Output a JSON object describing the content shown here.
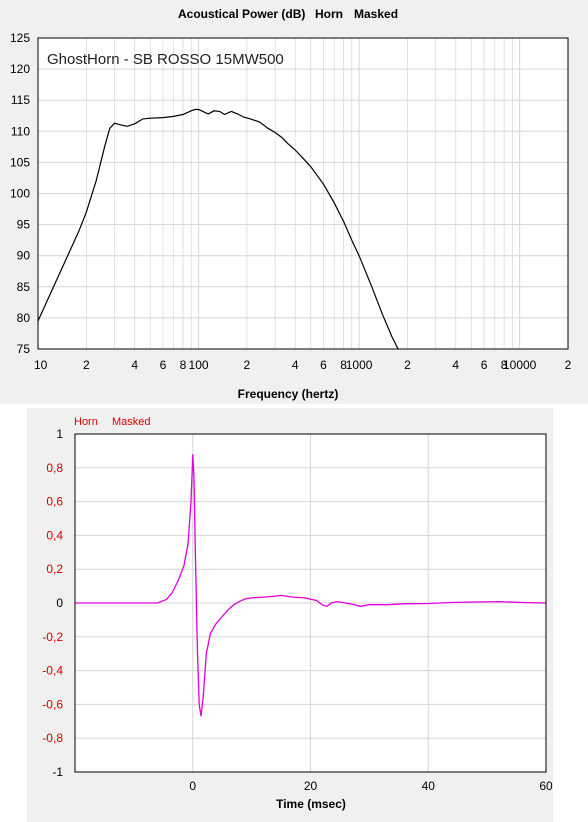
{
  "chart_data": [
    {
      "type": "line",
      "title": "Acoustical Power (dB)",
      "title_tags": [
        "Horn",
        "Masked"
      ],
      "annotation": "GhostHorn - SB ROSSO 15MW500",
      "xlabel": "Frequency (hertz)",
      "ylabel": "",
      "x_scale": "log",
      "xlim": [
        10,
        20000
      ],
      "ylim": [
        75,
        125
      ],
      "grid": true,
      "x_tick_labels": [
        {
          "v": 10,
          "label": "10"
        },
        {
          "v": 20,
          "label": "2"
        },
        {
          "v": 40,
          "label": "4"
        },
        {
          "v": 60,
          "label": "6"
        },
        {
          "v": 80,
          "label": "8"
        },
        {
          "v": 100,
          "label": "100"
        },
        {
          "v": 200,
          "label": "2"
        },
        {
          "v": 400,
          "label": "4"
        },
        {
          "v": 600,
          "label": "6"
        },
        {
          "v": 800,
          "label": "8"
        },
        {
          "v": 1000,
          "label": "1000"
        },
        {
          "v": 2000,
          "label": "2"
        },
        {
          "v": 4000,
          "label": "4"
        },
        {
          "v": 6000,
          "label": "6"
        },
        {
          "v": 8000,
          "label": "8"
        },
        {
          "v": 10000,
          "label": "10000"
        },
        {
          "v": 20000,
          "label": "2"
        }
      ],
      "y_tick_labels": [
        "75",
        "80",
        "85",
        "90",
        "95",
        "100",
        "105",
        "110",
        "115",
        "120",
        "125"
      ],
      "series": [
        {
          "color": "#000000",
          "x": [
            10,
            12,
            15,
            18,
            20,
            23,
            26,
            28,
            30,
            33,
            36,
            40,
            45,
            50,
            60,
            70,
            80,
            90,
            95,
            100,
            110,
            115,
            125,
            135,
            145,
            160,
            175,
            190,
            210,
            240,
            270,
            300,
            330,
            360,
            400,
            450,
            500,
            600,
            700,
            800,
            900,
            1000,
            1200,
            1400,
            1600,
            1750
          ],
          "y": [
            79.5,
            84,
            89.5,
            94,
            97,
            102,
            107.5,
            110.5,
            111.3,
            111,
            110.8,
            111.2,
            112,
            112.1,
            112.2,
            112.4,
            112.7,
            113.3,
            113.5,
            113.5,
            113,
            112.8,
            113.3,
            113.2,
            112.7,
            113.2,
            112.8,
            112.3,
            112,
            111.5,
            110.5,
            109.8,
            109,
            108,
            107,
            105.6,
            104.3,
            101.5,
            98.5,
            95.5,
            92.5,
            90,
            85,
            80.5,
            77,
            75
          ]
        }
      ]
    },
    {
      "type": "line",
      "legend": [
        "Horn",
        "Masked"
      ],
      "xlabel": "Time (msec)",
      "ylabel": "",
      "xlim": [
        -20,
        60
      ],
      "ylim": [
        -1,
        1
      ],
      "grid": true,
      "x_tick_labels": [
        "0",
        "20",
        "40",
        "60"
      ],
      "x_tick_values": [
        0,
        20,
        40,
        60
      ],
      "y_tick_labels": [
        "1",
        "0,8",
        "0,6",
        "0,4",
        "0,2",
        "0",
        "-0,2",
        "-0,4",
        "-0,6",
        "-0,8",
        "-1"
      ],
      "y_tick_values": [
        1,
        0.8,
        0.6,
        0.4,
        0.2,
        0,
        -0.2,
        -0.4,
        -0.6,
        -0.8,
        -1
      ],
      "series": [
        {
          "color": "#e000e0",
          "x": [
            -20,
            -6,
            -4.5,
            -3.5,
            -2.5,
            -1.5,
            -0.8,
            -0.3,
            0,
            0.2,
            0.5,
            0.8,
            1.1,
            1.4,
            1.8,
            2.3,
            3,
            4,
            5,
            6,
            7,
            8,
            9,
            10,
            12,
            14,
            15,
            17,
            19,
            21,
            22,
            22.8,
            23.5,
            24.5,
            26,
            27.5,
            28.5,
            30,
            33,
            36,
            40,
            44,
            48,
            52,
            56,
            60
          ],
          "y": [
            0,
            0,
            0.02,
            0.06,
            0.13,
            0.22,
            0.35,
            0.6,
            0.88,
            0.75,
            0.2,
            -0.3,
            -0.6,
            -0.67,
            -0.55,
            -0.3,
            -0.18,
            -0.12,
            -0.08,
            -0.04,
            -0.01,
            0.01,
            0.025,
            0.03,
            0.035,
            0.04,
            0.045,
            0.035,
            0.03,
            0.015,
            -0.01,
            -0.02,
            0,
            0.008,
            0,
            -0.01,
            -0.02,
            -0.01,
            -0.01,
            -0.005,
            -0.003,
            0.003,
            0.006,
            0.008,
            0.003,
            0
          ]
        }
      ]
    }
  ],
  "labels": {
    "top_title": "Acoustical Power (dB)",
    "top_tag_1": "Horn",
    "top_tag_2": "Masked",
    "annotation": "GhostHorn - SB ROSSO 15MW500",
    "top_xlabel": "Frequency (hertz)",
    "bottom_legend_1": "Horn",
    "bottom_legend_2": "Masked",
    "bottom_xlabel": "Time (msec)"
  },
  "colors": {
    "panel_bg": "#f0f0f0",
    "plot_bg": "#ffffff",
    "grid": "#d6d6d6",
    "top_curve": "#000000",
    "impulse_curve": "#e000e0",
    "red_label": "#d80000"
  }
}
